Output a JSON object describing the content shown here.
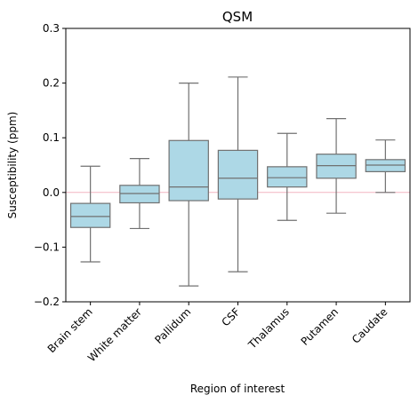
{
  "chart_data": {
    "type": "box",
    "title": "QSM",
    "xlabel": "Region of interest",
    "ylabel": "Susceptibility (ppm)",
    "ylim": [
      -0.2,
      0.3
    ],
    "yticks": [
      -0.2,
      -0.1,
      0.0,
      0.1,
      0.2,
      0.3
    ],
    "ytick_labels": [
      "−0.2",
      "−0.1",
      "0.0",
      "0.1",
      "0.2",
      "0.3"
    ],
    "grid": false,
    "reference_line": {
      "y": 0.0,
      "color": "#f4b6c2"
    },
    "colors": {
      "box_fill": "#add8e6",
      "box_edge": "#707070",
      "axes": "#000000"
    },
    "categories": [
      "Brain stem",
      "White matter",
      "Pallidum",
      "CSF",
      "Thalamus",
      "Putamen",
      "Caudate"
    ],
    "boxes": [
      {
        "whisker_low": -0.127,
        "q1": -0.064,
        "median": -0.044,
        "q3": -0.02,
        "whisker_high": 0.048
      },
      {
        "whisker_low": -0.066,
        "q1": -0.019,
        "median": -0.002,
        "q3": 0.013,
        "whisker_high": 0.062
      },
      {
        "whisker_low": -0.171,
        "q1": -0.015,
        "median": 0.01,
        "q3": 0.095,
        "whisker_high": 0.2
      },
      {
        "whisker_low": -0.145,
        "q1": -0.012,
        "median": 0.026,
        "q3": 0.077,
        "whisker_high": 0.211
      },
      {
        "whisker_low": -0.051,
        "q1": 0.01,
        "median": 0.027,
        "q3": 0.047,
        "whisker_high": 0.108
      },
      {
        "whisker_low": -0.038,
        "q1": 0.026,
        "median": 0.049,
        "q3": 0.07,
        "whisker_high": 0.135
      },
      {
        "whisker_low": 0.0,
        "q1": 0.038,
        "median": 0.05,
        "q3": 0.06,
        "whisker_high": 0.096
      }
    ]
  }
}
